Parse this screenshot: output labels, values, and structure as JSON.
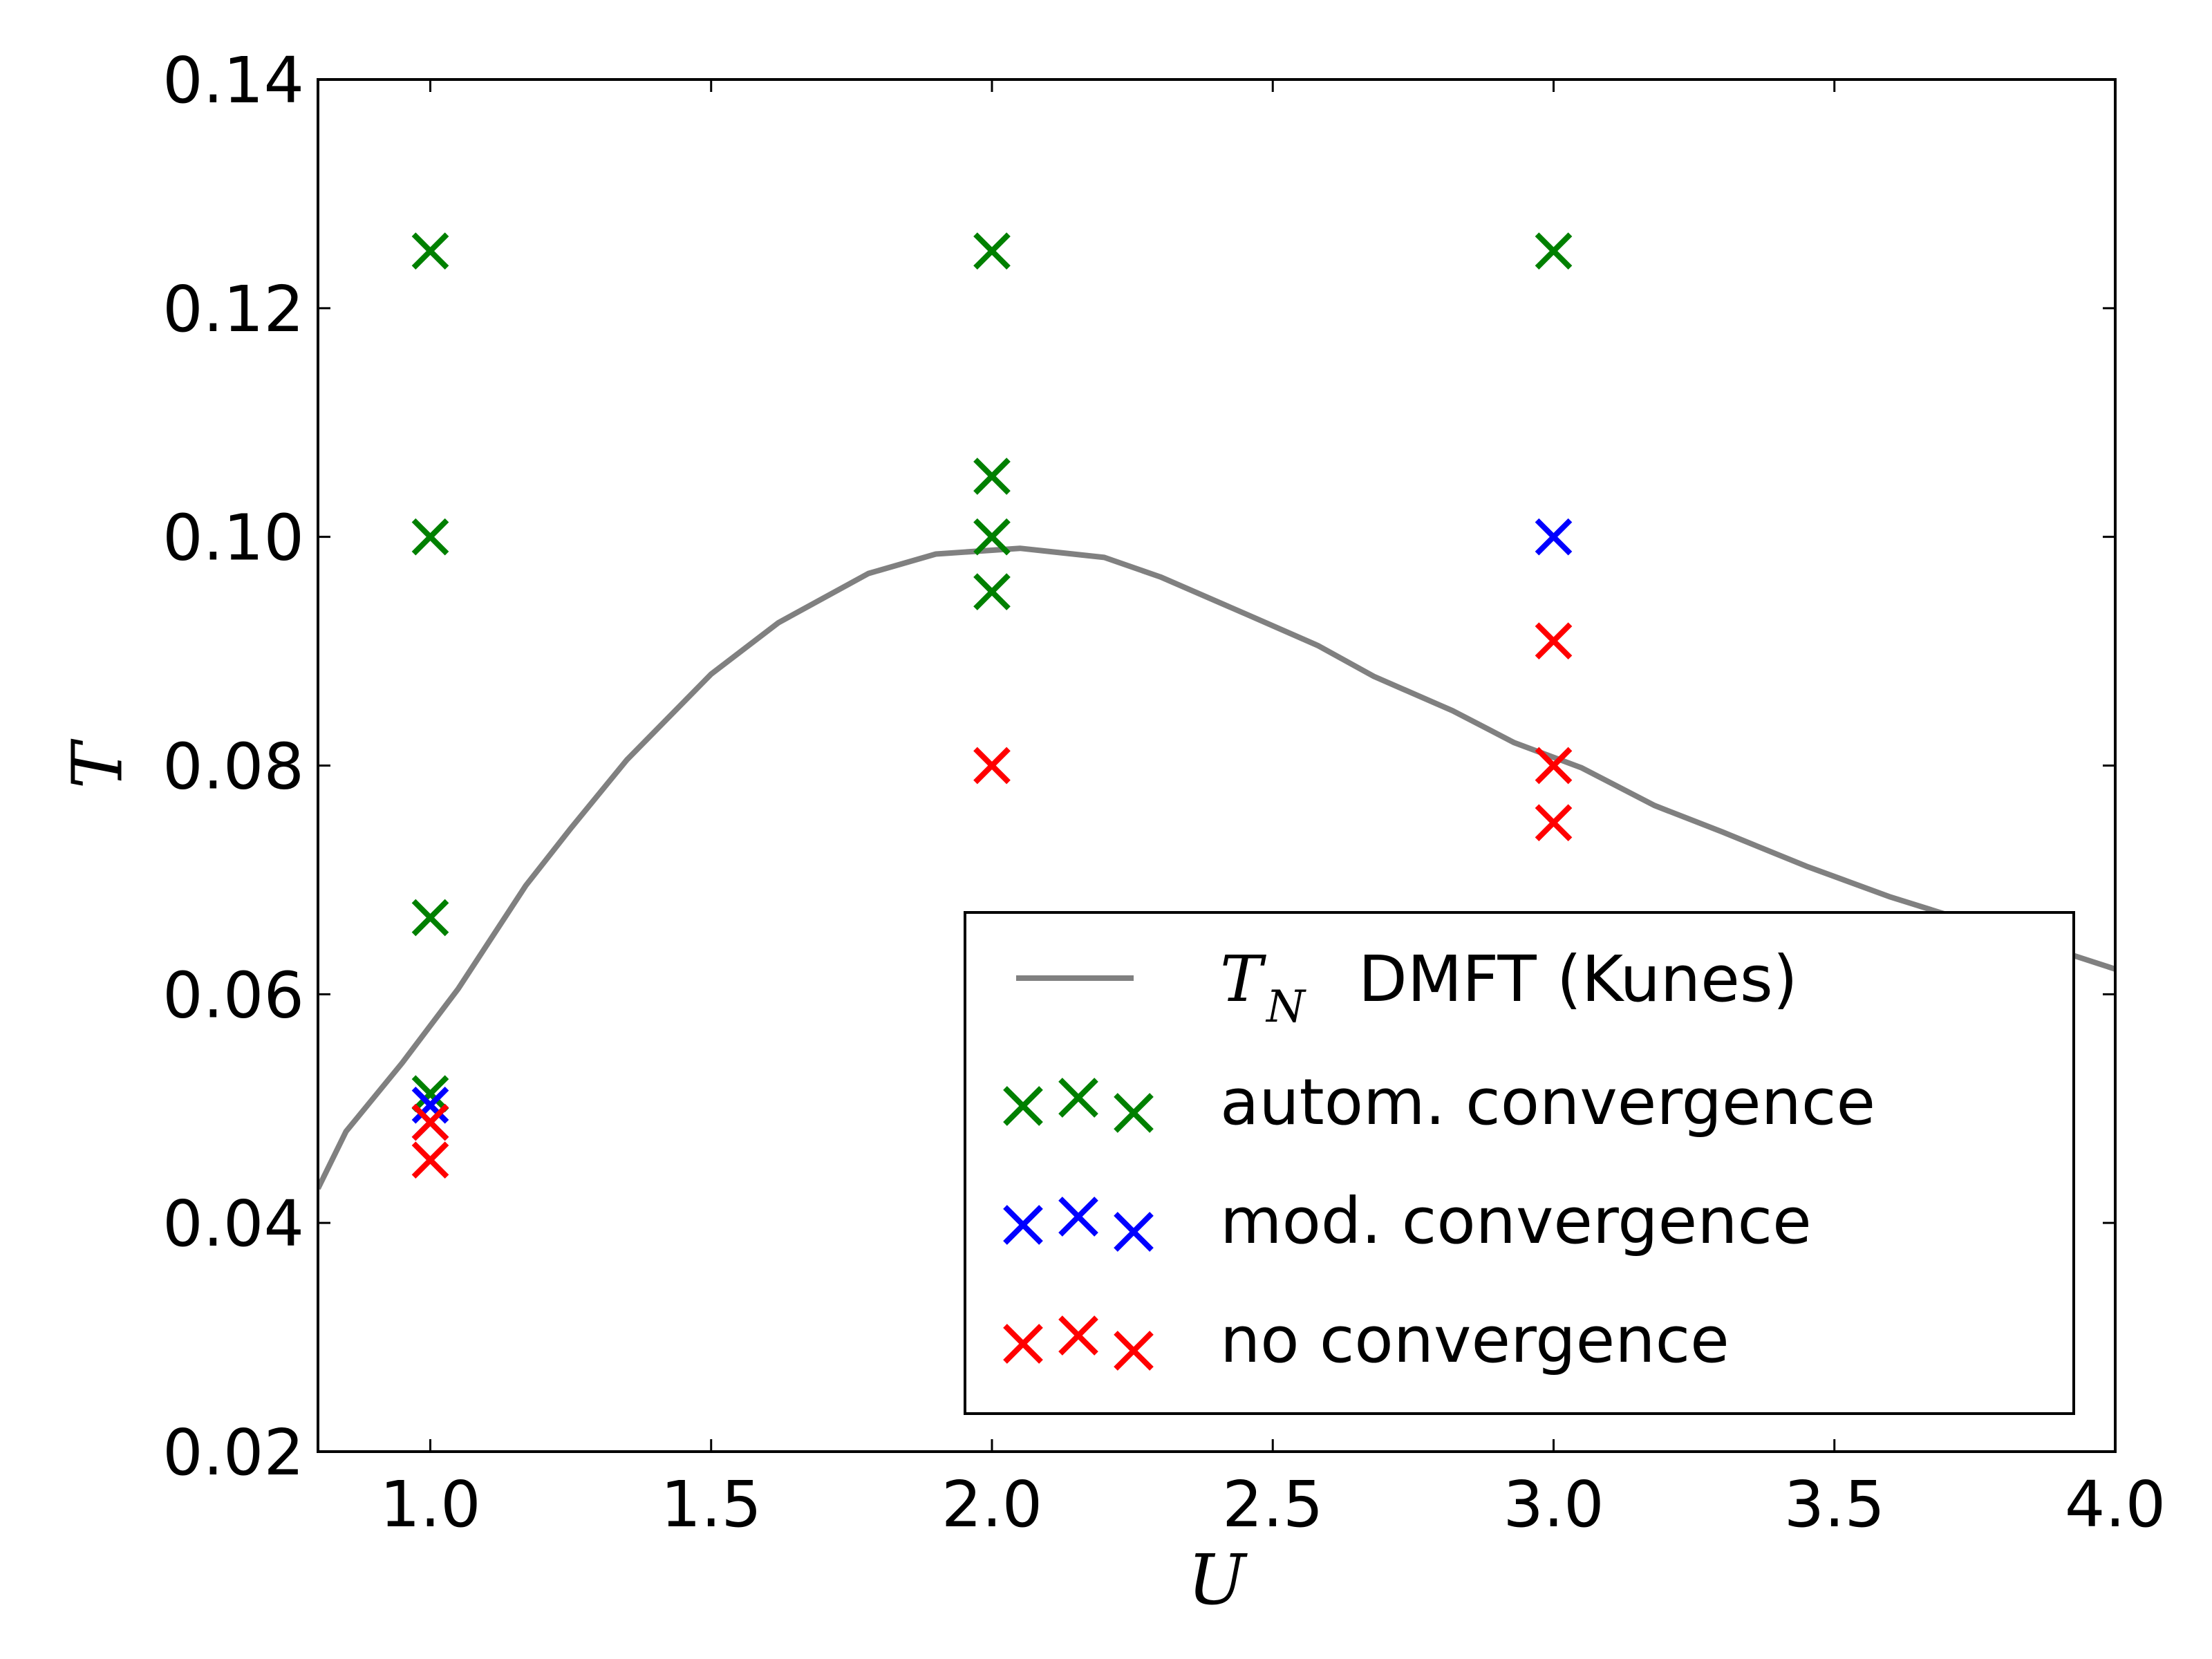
{
  "chart_data": {
    "type": "scatter",
    "xlabel": "U",
    "ylabel": "T",
    "xlim": [
      0.8,
      4.0
    ],
    "ylim": [
      0.02,
      0.14
    ],
    "xticks": [
      "1.0",
      "1.5",
      "2.0",
      "2.5",
      "3.0",
      "3.5",
      "4.0"
    ],
    "yticks": [
      "0.02",
      "0.04",
      "0.06",
      "0.08",
      "0.10",
      "0.12",
      "0.14"
    ],
    "grid": false,
    "legend_position": "lower-right",
    "line_series": {
      "name_math": "T",
      "name_sub": "N",
      "name_text": "DMFT (Kunes)",
      "color": "#808080",
      "x": [
        0.8,
        0.85,
        0.95,
        1.05,
        1.17,
        1.25,
        1.35,
        1.5,
        1.62,
        1.78,
        1.9,
        2.05,
        2.2,
        2.3,
        2.45,
        2.58,
        2.68,
        2.82,
        2.93,
        3.05,
        3.18,
        3.3,
        3.45,
        3.6,
        3.75,
        3.9,
        4.0
      ],
      "y": [
        0.043,
        0.048,
        0.054,
        0.0605,
        0.0695,
        0.0745,
        0.0805,
        0.088,
        0.0925,
        0.0968,
        0.0985,
        0.099,
        0.0982,
        0.0965,
        0.0933,
        0.0905,
        0.0878,
        0.0848,
        0.082,
        0.0798,
        0.0765,
        0.0742,
        0.0712,
        0.0685,
        0.0662,
        0.0638,
        0.0622
      ]
    },
    "series": [
      {
        "name": "autom. convergence",
        "color": "#008000",
        "x": [
          1.0,
          1.0,
          1.0,
          1.0,
          2.0,
          2.0,
          2.0,
          2.0,
          3.0
        ],
        "y": [
          0.125,
          0.1,
          0.0667,
          0.0513,
          0.125,
          0.1053,
          0.1,
          0.0952,
          0.125
        ]
      },
      {
        "name": "mod. convergence",
        "color": "#0000ff",
        "x": [
          1.0,
          1.0,
          3.0
        ],
        "y": [
          0.0503,
          0.0488,
          0.1
        ]
      },
      {
        "name": "no convergence",
        "color": "#ff0000",
        "x": [
          1.0,
          1.0,
          2.0,
          3.0,
          3.0,
          3.0
        ],
        "y": [
          0.0488,
          0.0455,
          0.08,
          0.0909,
          0.08,
          0.075
        ]
      }
    ]
  }
}
